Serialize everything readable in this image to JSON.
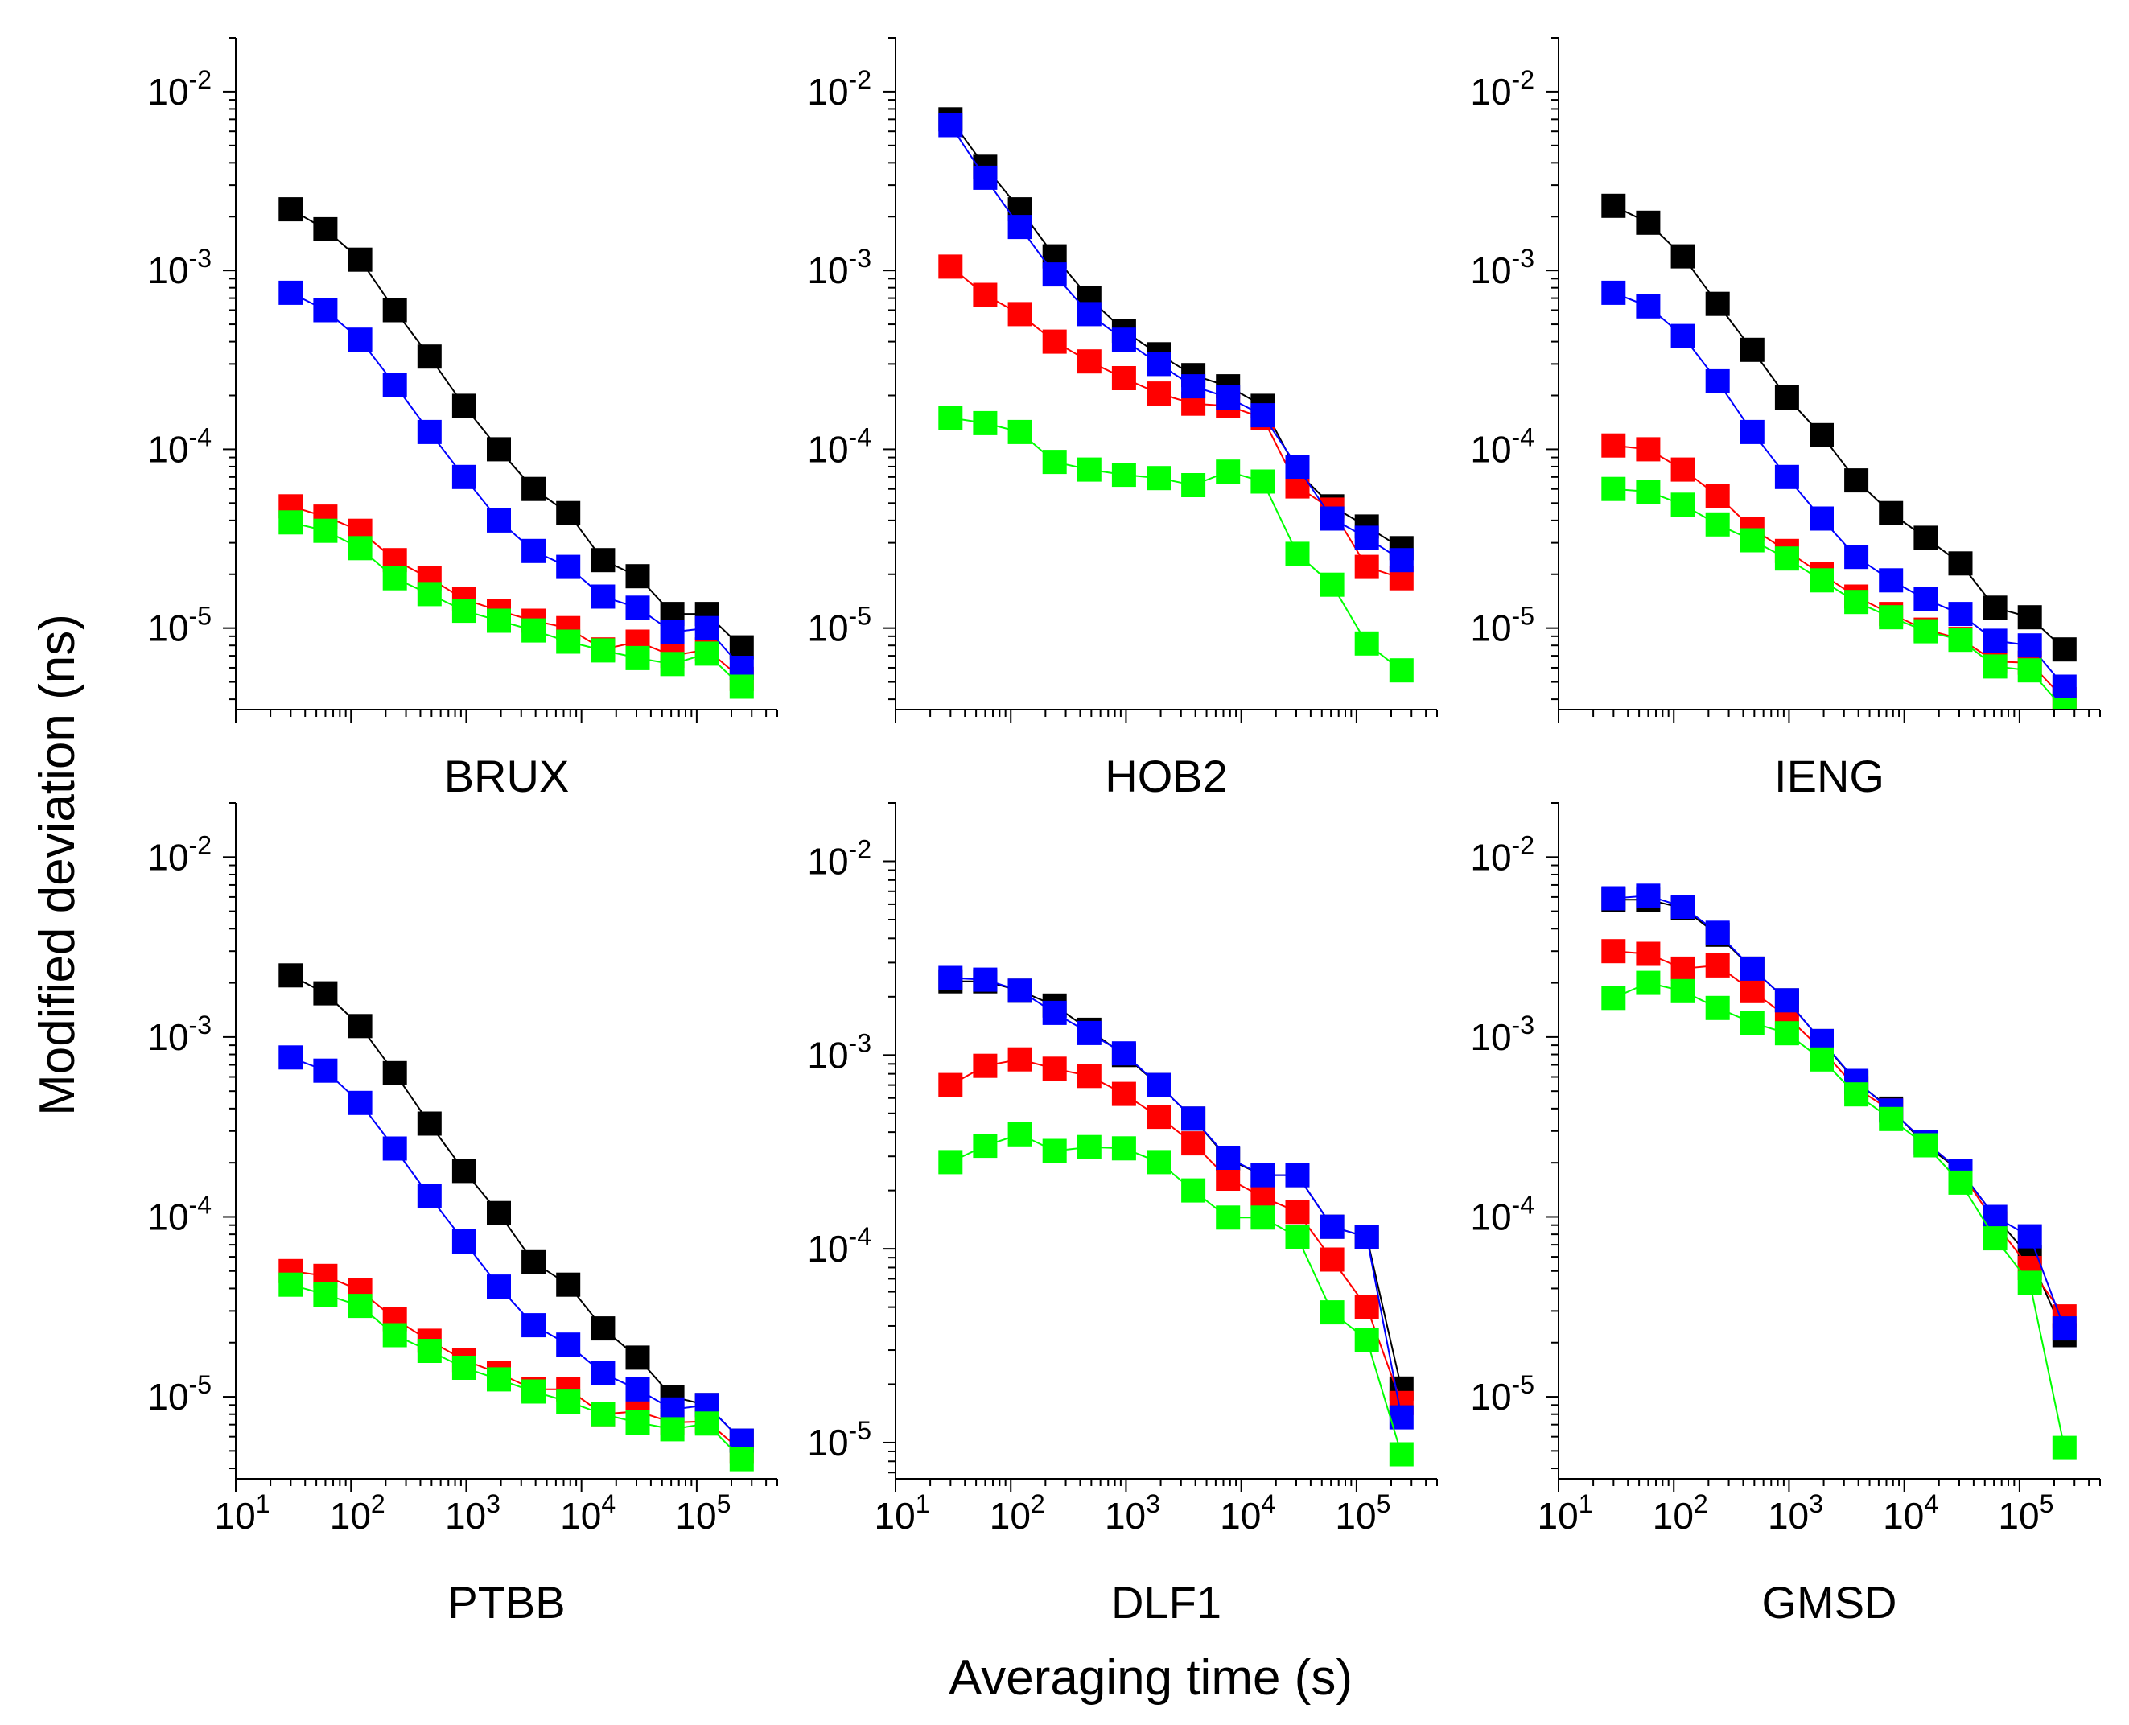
{
  "figure": {
    "ylabel": "Modified deviation (ns)",
    "xlabel": "Averaging time (s)",
    "series_colors": {
      "black": "#000000",
      "red": "#ff0000",
      "blue": "#0000ff",
      "green": "#00ff00"
    }
  },
  "chart_data": [
    {
      "type": "scatter",
      "title": "BRUX",
      "xscale": "log",
      "yscale": "log",
      "xlim": [
        10,
        500000
      ],
      "ylim": [
        3.5e-06,
        0.02
      ],
      "xticks": [
        {
          "base": "10",
          "exp": "1"
        },
        {
          "base": "10",
          "exp": "2"
        },
        {
          "base": "10",
          "exp": "3"
        },
        {
          "base": "10",
          "exp": "4"
        },
        {
          "base": "10",
          "exp": "5"
        }
      ],
      "yticks": [
        {
          "base": "10",
          "exp": "-5"
        },
        {
          "base": "10",
          "exp": "-4"
        },
        {
          "base": "10",
          "exp": "-3"
        },
        {
          "base": "10",
          "exp": "-2"
        }
      ],
      "show_xticklabels": false,
      "x": [
        30,
        60,
        120,
        240,
        480,
        960,
        1920,
        3840,
        7680,
        15360,
        30720,
        61440,
        122880,
        245760
      ],
      "series": [
        {
          "name": "black",
          "color": "#000000",
          "values": [
            0.0022,
            0.0017,
            0.00115,
            0.0006,
            0.00033,
            0.000175,
            0.0001,
            6e-05,
            4.4e-05,
            2.4e-05,
            1.95e-05,
            1.2e-05,
            1.2e-05,
            7.8e-06
          ]
        },
        {
          "name": "red",
          "color": "#ff0000",
          "values": [
            4.8e-05,
            4.2e-05,
            3.5e-05,
            2.4e-05,
            1.9e-05,
            1.45e-05,
            1.25e-05,
            1.1e-05,
            1e-05,
            7.6e-06,
            8.4e-06,
            7e-06,
            7.6e-06,
            5.2e-06
          ]
        },
        {
          "name": "blue",
          "color": "#0000ff",
          "values": [
            0.00075,
            0.0006,
            0.00041,
            0.00023,
            0.000125,
            7e-05,
            4e-05,
            2.7e-05,
            2.2e-05,
            1.5e-05,
            1.3e-05,
            9.5e-06,
            1e-05,
            6e-06
          ]
        },
        {
          "name": "green",
          "color": "#00ff00",
          "values": [
            3.9e-05,
            3.5e-05,
            2.8e-05,
            1.9e-05,
            1.55e-05,
            1.25e-05,
            1.1e-05,
            9.7e-06,
            8.4e-06,
            7.5e-06,
            6.8e-06,
            6.3e-06,
            7.2e-06,
            4.7e-06
          ]
        }
      ]
    },
    {
      "type": "scatter",
      "title": "HOB2",
      "xscale": "log",
      "yscale": "log",
      "xlim": [
        10,
        500000
      ],
      "ylim": [
        3.5e-06,
        0.02
      ],
      "xticks": [
        {
          "base": "10",
          "exp": "1"
        },
        {
          "base": "10",
          "exp": "2"
        },
        {
          "base": "10",
          "exp": "3"
        },
        {
          "base": "10",
          "exp": "4"
        },
        {
          "base": "10",
          "exp": "5"
        }
      ],
      "yticks": [
        {
          "base": "10",
          "exp": "-5"
        },
        {
          "base": "10",
          "exp": "-4"
        },
        {
          "base": "10",
          "exp": "-3"
        },
        {
          "base": "10",
          "exp": "-2"
        }
      ],
      "show_xticklabels": false,
      "x": [
        30,
        60,
        120,
        240,
        480,
        960,
        1920,
        3840,
        7680,
        15360,
        30720,
        61440,
        122880,
        245760
      ],
      "series": [
        {
          "name": "black",
          "color": "#000000",
          "values": [
            0.007,
            0.0038,
            0.0022,
            0.0012,
            0.0007,
            0.00046,
            0.00034,
            0.00026,
            0.000225,
            0.000175,
            7.5e-05,
            4.8e-05,
            3.7e-05,
            2.8e-05
          ]
        },
        {
          "name": "red",
          "color": "#ff0000",
          "values": [
            0.00105,
            0.00073,
            0.00057,
            0.0004,
            0.00031,
            0.00025,
            0.000205,
            0.00018,
            0.000175,
            0.00015,
            6.2e-05,
            4.6e-05,
            2.2e-05,
            1.9e-05
          ]
        },
        {
          "name": "blue",
          "color": "#0000ff",
          "values": [
            0.0065,
            0.0033,
            0.00175,
            0.00095,
            0.00057,
            0.00041,
            0.0003,
            0.000225,
            0.000195,
            0.000155,
            8e-05,
            4.1e-05,
            3.2e-05,
            2.4e-05
          ]
        },
        {
          "name": "green",
          "color": "#00ff00",
          "values": [
            0.00015,
            0.00014,
            0.000125,
            8.5e-05,
            7.7e-05,
            7.2e-05,
            6.9e-05,
            6.3e-05,
            7.5e-05,
            6.6e-05,
            2.6e-05,
            1.75e-05,
            8.2e-06,
            5.8e-06
          ]
        }
      ]
    },
    {
      "type": "scatter",
      "title": "IENG",
      "xscale": "log",
      "yscale": "log",
      "xlim": [
        10,
        500000
      ],
      "ylim": [
        3.5e-06,
        0.02
      ],
      "xticks": [
        {
          "base": "10",
          "exp": "1"
        },
        {
          "base": "10",
          "exp": "2"
        },
        {
          "base": "10",
          "exp": "3"
        },
        {
          "base": "10",
          "exp": "4"
        },
        {
          "base": "10",
          "exp": "5"
        }
      ],
      "yticks": [
        {
          "base": "10",
          "exp": "-5"
        },
        {
          "base": "10",
          "exp": "-4"
        },
        {
          "base": "10",
          "exp": "-3"
        },
        {
          "base": "10",
          "exp": "-2"
        }
      ],
      "show_xticklabels": false,
      "x": [
        30,
        60,
        120,
        240,
        480,
        960,
        1920,
        3840,
        7680,
        15360,
        30720,
        61440,
        122880,
        245760
      ],
      "series": [
        {
          "name": "black",
          "color": "#000000",
          "values": [
            0.0023,
            0.00185,
            0.0012,
            0.00065,
            0.00036,
            0.000195,
            0.00012,
            6.7e-05,
            4.4e-05,
            3.2e-05,
            2.3e-05,
            1.3e-05,
            1.15e-05,
            7.6e-06
          ]
        },
        {
          "name": "red",
          "color": "#ff0000",
          "values": [
            0.000105,
            0.0001,
            7.7e-05,
            5.5e-05,
            3.6e-05,
            2.7e-05,
            2e-05,
            1.5e-05,
            1.2e-05,
            9.8e-06,
            8.7e-06,
            6.5e-06,
            6.4e-06,
            4e-06
          ]
        },
        {
          "name": "blue",
          "color": "#0000ff",
          "values": [
            0.00075,
            0.00063,
            0.00043,
            0.00024,
            0.000125,
            7e-05,
            4.1e-05,
            2.5e-05,
            1.85e-05,
            1.45e-05,
            1.2e-05,
            8.5e-06,
            8e-06,
            4.7e-06
          ]
        },
        {
          "name": "green",
          "color": "#00ff00",
          "values": [
            6e-05,
            5.8e-05,
            4.9e-05,
            3.8e-05,
            3.1e-05,
            2.45e-05,
            1.85e-05,
            1.4e-05,
            1.15e-05,
            9.6e-06,
            8.6e-06,
            6.1e-06,
            5.8e-06,
            3.5e-06
          ]
        }
      ]
    },
    {
      "type": "scatter",
      "title": "PTBB",
      "xscale": "log",
      "yscale": "log",
      "xlim": [
        10,
        500000
      ],
      "ylim": [
        3.5e-06,
        0.02
      ],
      "xticks": [
        {
          "base": "10",
          "exp": "1"
        },
        {
          "base": "10",
          "exp": "2"
        },
        {
          "base": "10",
          "exp": "3"
        },
        {
          "base": "10",
          "exp": "4"
        },
        {
          "base": "10",
          "exp": "5"
        }
      ],
      "yticks": [
        {
          "base": "10",
          "exp": "-5"
        },
        {
          "base": "10",
          "exp": "-4"
        },
        {
          "base": "10",
          "exp": "-3"
        },
        {
          "base": "10",
          "exp": "-2"
        }
      ],
      "show_xticklabels": true,
      "x": [
        30,
        60,
        120,
        240,
        480,
        960,
        1920,
        3840,
        7680,
        15360,
        30720,
        61440,
        122880,
        245760
      ],
      "series": [
        {
          "name": "black",
          "color": "#000000",
          "values": [
            0.0022,
            0.00175,
            0.00115,
            0.00063,
            0.00033,
            0.00018,
            0.000105,
            5.6e-05,
            4.2e-05,
            2.4e-05,
            1.65e-05,
            1e-05,
            9e-06,
            5.7e-06
          ]
        },
        {
          "name": "red",
          "color": "#ff0000",
          "values": [
            5e-05,
            4.7e-05,
            3.9e-05,
            2.7e-05,
            2.05e-05,
            1.6e-05,
            1.35e-05,
            1.1e-05,
            1.1e-05,
            8e-06,
            8.3e-06,
            7.2e-06,
            7.3e-06,
            5e-06
          ]
        },
        {
          "name": "blue",
          "color": "#0000ff",
          "values": [
            0.00077,
            0.00065,
            0.00043,
            0.00024,
            0.00013,
            7.3e-05,
            4.1e-05,
            2.5e-05,
            1.95e-05,
            1.35e-05,
            1.1e-05,
            8.5e-06,
            9e-06,
            5.7e-06
          ]
        },
        {
          "name": "green",
          "color": "#00ff00",
          "values": [
            4.2e-05,
            3.7e-05,
            3.2e-05,
            2.2e-05,
            1.8e-05,
            1.45e-05,
            1.25e-05,
            1.07e-05,
            9.4e-06,
            8e-06,
            7.2e-06,
            6.6e-06,
            7.1e-06,
            4.5e-06
          ]
        }
      ]
    },
    {
      "type": "scatter",
      "title": "DLF1",
      "xscale": "log",
      "yscale": "log",
      "xlim": [
        10,
        500000
      ],
      "ylim": [
        6.5e-06,
        0.02
      ],
      "xticks": [
        {
          "base": "10",
          "exp": "1"
        },
        {
          "base": "10",
          "exp": "2"
        },
        {
          "base": "10",
          "exp": "3"
        },
        {
          "base": "10",
          "exp": "4"
        },
        {
          "base": "10",
          "exp": "5"
        }
      ],
      "yticks": [
        {
          "base": "10",
          "exp": "-5"
        },
        {
          "base": "10",
          "exp": "-4"
        },
        {
          "base": "10",
          "exp": "-3"
        },
        {
          "base": "10",
          "exp": "-2"
        }
      ],
      "show_xticklabels": true,
      "x": [
        30,
        60,
        120,
        240,
        480,
        960,
        1920,
        3840,
        7680,
        15360,
        30720,
        61440,
        122880,
        245760
      ],
      "series": [
        {
          "name": "black",
          "color": "#000000",
          "values": [
            0.0024,
            0.0024,
            0.00215,
            0.0018,
            0.00135,
            0.001,
            0.0007,
            0.00047,
            0.00029,
            0.00024,
            0.00024,
            0.00013,
            0.000115,
            1.9e-05
          ]
        },
        {
          "name": "red",
          "color": "#ff0000",
          "values": [
            0.0007,
            0.00088,
            0.00095,
            0.00085,
            0.00078,
            0.00063,
            0.00048,
            0.00035,
            0.00023,
            0.000185,
            0.000155,
            8.8e-05,
            5e-05,
            1.6e-05
          ]
        },
        {
          "name": "blue",
          "color": "#0000ff",
          "values": [
            0.0025,
            0.00245,
            0.00215,
            0.00165,
            0.0013,
            0.00102,
            0.0007,
            0.00047,
            0.000295,
            0.00024,
            0.00024,
            0.00013,
            0.000115,
            1.35e-05
          ]
        },
        {
          "name": "green",
          "color": "#00ff00",
          "values": [
            0.00028,
            0.00034,
            0.00039,
            0.00032,
            0.000335,
            0.00033,
            0.00028,
            0.0002,
            0.000145,
            0.000145,
            0.000115,
            4.7e-05,
            3.4e-05,
            8.7e-06
          ]
        }
      ]
    },
    {
      "type": "scatter",
      "title": "GMSD",
      "xscale": "log",
      "yscale": "log",
      "xlim": [
        10,
        500000
      ],
      "ylim": [
        3.5e-06,
        0.02
      ],
      "xticks": [
        {
          "base": "10",
          "exp": "1"
        },
        {
          "base": "10",
          "exp": "2"
        },
        {
          "base": "10",
          "exp": "3"
        },
        {
          "base": "10",
          "exp": "4"
        },
        {
          "base": "10",
          "exp": "5"
        }
      ],
      "yticks": [
        {
          "base": "10",
          "exp": "-5"
        },
        {
          "base": "10",
          "exp": "-4"
        },
        {
          "base": "10",
          "exp": "-3"
        },
        {
          "base": "10",
          "exp": "-2"
        }
      ],
      "show_xticklabels": true,
      "x": [
        30,
        60,
        120,
        240,
        480,
        960,
        1920,
        3840,
        7680,
        15360,
        30720,
        61440,
        122880,
        245760
      ],
      "series": [
        {
          "name": "black",
          "color": "#000000",
          "values": [
            0.0058,
            0.0058,
            0.0052,
            0.0037,
            0.0024,
            0.0016,
            0.00095,
            0.00056,
            0.0004,
            0.00025,
            0.00018,
            0.0001,
            6e-05,
            2.2e-05
          ]
        },
        {
          "name": "red",
          "color": "#ff0000",
          "values": [
            0.003,
            0.0029,
            0.0024,
            0.0025,
            0.0018,
            0.0013,
            0.00085,
            0.00052,
            0.00039,
            0.00026,
            0.00018,
            9.2e-05,
            5.2e-05,
            2.8e-05
          ]
        },
        {
          "name": "blue",
          "color": "#0000ff",
          "values": [
            0.0059,
            0.0061,
            0.0053,
            0.0038,
            0.0024,
            0.0016,
            0.00095,
            0.00057,
            0.00039,
            0.00026,
            0.00018,
            0.0001,
            7.8e-05,
            2.4e-05
          ]
        },
        {
          "name": "green",
          "color": "#00ff00",
          "values": [
            0.00165,
            0.002,
            0.0018,
            0.00145,
            0.0012,
            0.00105,
            0.00075,
            0.00048,
            0.00035,
            0.00025,
            0.000155,
            7.6e-05,
            4.3e-05,
            5.2e-06
          ]
        }
      ]
    }
  ]
}
